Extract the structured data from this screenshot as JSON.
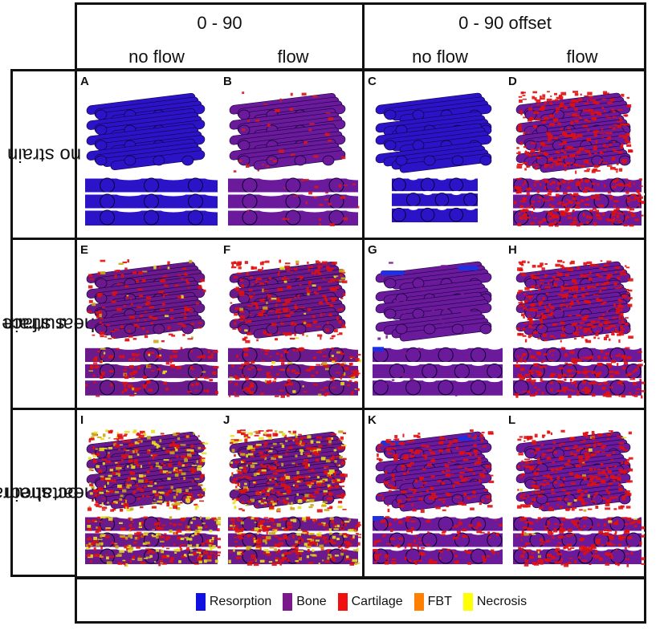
{
  "headers": {
    "group_1": "0 - 90",
    "group_2": "0 - 90 offset",
    "sub": [
      "no flow",
      "flow",
      "no flow",
      "flow"
    ]
  },
  "rows": [
    {
      "label_lines": [
        "no strain"
      ]
    },
    {
      "label_lines": [
        "surface",
        "shear strain"
      ]
    },
    {
      "label_lines": [
        "octahedral",
        "shear strain"
      ]
    }
  ],
  "panels": [
    {
      "letter": "A",
      "base": "#2b14c8",
      "spot": "#5a14a0",
      "density": 0.0,
      "yellow": 0.0,
      "blueTop": 0.0,
      "offset": false
    },
    {
      "letter": "B",
      "base": "#6a1a9a",
      "spot": "#d81818",
      "density": 0.08,
      "yellow": 0.0,
      "blueTop": 0.0,
      "offset": false
    },
    {
      "letter": "C",
      "base": "#2b14c8",
      "spot": "#3a18b8",
      "density": 0.0,
      "yellow": 0.0,
      "blueTop": 0.0,
      "offset": true
    },
    {
      "letter": "D",
      "base": "#6a1a9a",
      "spot": "#e01010",
      "density": 0.55,
      "yellow": 0.0,
      "blueTop": 0.0,
      "offset": true
    },
    {
      "letter": "E",
      "base": "#6a1a8a",
      "spot": "#e01010",
      "density": 0.25,
      "yellow": 0.03,
      "blueTop": 0.0,
      "offset": false
    },
    {
      "letter": "F",
      "base": "#6a1a8a",
      "spot": "#e01010",
      "density": 0.38,
      "yellow": 0.05,
      "blueTop": 0.0,
      "offset": false
    },
    {
      "letter": "G",
      "base": "#6a1a9a",
      "spot": "#7a1a90",
      "density": 0.03,
      "yellow": 0.0,
      "blueTop": 0.08,
      "offset": true
    },
    {
      "letter": "H",
      "base": "#6a1a9a",
      "spot": "#e01010",
      "density": 0.55,
      "yellow": 0.0,
      "blueTop": 0.0,
      "offset": true
    },
    {
      "letter": "I",
      "base": "#6a1a8a",
      "spot": "#e01010",
      "density": 0.35,
      "yellow": 0.35,
      "blueTop": 0.0,
      "offset": false
    },
    {
      "letter": "J",
      "base": "#6a1a8a",
      "spot": "#e01010",
      "density": 0.45,
      "yellow": 0.3,
      "blueTop": 0.0,
      "offset": false
    },
    {
      "letter": "K",
      "base": "#6a1a9a",
      "spot": "#e01010",
      "density": 0.3,
      "yellow": 0.0,
      "blueTop": 0.08,
      "offset": true
    },
    {
      "letter": "L",
      "base": "#6a1a9a",
      "spot": "#e01010",
      "density": 0.55,
      "yellow": 0.02,
      "blueTop": 0.0,
      "offset": true
    }
  ],
  "legend": [
    {
      "label": "Resorption",
      "color": "#1010e0"
    },
    {
      "label": "Bone",
      "color": "#7a1a8a"
    },
    {
      "label": "Cartilage",
      "color": "#f01010"
    },
    {
      "label": "FBT",
      "color": "#ff8000"
    },
    {
      "label": "Necrosis",
      "color": "#ffff00"
    }
  ]
}
